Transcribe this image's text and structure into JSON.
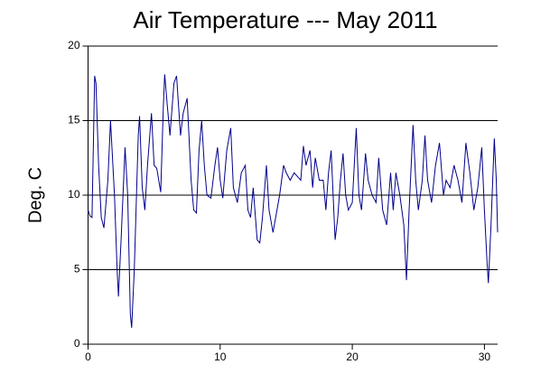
{
  "chart_data": {
    "type": "line",
    "title": "Air Temperature --- May 2011",
    "y_label": "Deg. C",
    "xlim": [
      0,
      31
    ],
    "ylim": [
      0,
      20
    ],
    "xticks": [
      0,
      10,
      20,
      30
    ],
    "yticks": [
      0,
      5,
      10,
      15,
      20
    ],
    "grid": true,
    "x": [
      0,
      0.15,
      0.3,
      0.5,
      0.6,
      0.8,
      1.0,
      1.2,
      1.5,
      1.7,
      2.0,
      2.2,
      2.3,
      2.5,
      2.8,
      3.0,
      3.2,
      3.3,
      3.5,
      3.8,
      3.9,
      4.1,
      4.3,
      4.5,
      4.8,
      5.0,
      5.2,
      5.5,
      5.7,
      5.8,
      6.0,
      6.2,
      6.5,
      6.7,
      7.0,
      7.2,
      7.5,
      7.8,
      8.0,
      8.2,
      8.4,
      8.6,
      8.8,
      9.0,
      9.3,
      9.6,
      9.8,
      10.0,
      10.2,
      10.5,
      10.8,
      11.0,
      11.3,
      11.6,
      11.9,
      12.1,
      12.3,
      12.5,
      12.8,
      13.0,
      13.2,
      13.5,
      13.7,
      14.0,
      14.2,
      14.5,
      14.8,
      15.0,
      15.3,
      15.6,
      15.9,
      16.1,
      16.3,
      16.5,
      16.8,
      17.0,
      17.2,
      17.5,
      17.8,
      18.0,
      18.2,
      18.4,
      18.7,
      18.9,
      19.1,
      19.3,
      19.5,
      19.7,
      20.0,
      20.3,
      20.5,
      20.7,
      21.0,
      21.2,
      21.5,
      21.8,
      22.0,
      22.3,
      22.6,
      22.9,
      23.1,
      23.3,
      23.6,
      23.9,
      24.1,
      24.3,
      24.6,
      24.8,
      25.0,
      25.3,
      25.5,
      25.7,
      26.0,
      26.3,
      26.6,
      26.9,
      27.1,
      27.4,
      27.7,
      28.0,
      28.3,
      28.6,
      28.9,
      29.2,
      29.5,
      29.8,
      30.0,
      30.2,
      30.3,
      30.5,
      30.75,
      30.9,
      31.0
    ],
    "series": [
      {
        "name": "Air Temperature",
        "color": "#00008b",
        "values": [
          9,
          8.6,
          8.5,
          18,
          17.5,
          12,
          8.5,
          7.8,
          11,
          15,
          10,
          5,
          3.2,
          7,
          13.2,
          10,
          2,
          1.1,
          5,
          14,
          15.3,
          10.5,
          9,
          12,
          15.5,
          12,
          11.8,
          10.2,
          16,
          18.1,
          16,
          14,
          17.5,
          18,
          14,
          15.5,
          16.5,
          11,
          9,
          8.8,
          13,
          15,
          12,
          10,
          9.8,
          12,
          13.2,
          11,
          9.8,
          13,
          14.5,
          10.5,
          9.5,
          11.5,
          12,
          9,
          8.5,
          10.5,
          7,
          6.8,
          8.5,
          12,
          9,
          7.5,
          8.5,
          10,
          12,
          11.5,
          11,
          11.5,
          11.2,
          11,
          13.3,
          12,
          13,
          10.5,
          12.5,
          11,
          11,
          9,
          11.5,
          13,
          7,
          8.5,
          11,
          12.8,
          10,
          9,
          9.5,
          14.5,
          10,
          9,
          12.8,
          11,
          10,
          9.5,
          12.5,
          9,
          8,
          11.5,
          9,
          11.5,
          10,
          8,
          4.3,
          9,
          14.7,
          11,
          9,
          11,
          14,
          11,
          9.5,
          12,
          13.5,
          10,
          11,
          10.5,
          12,
          11,
          9.5,
          13.5,
          11.5,
          9,
          10.5,
          13.2,
          9,
          5.5,
          4.1,
          8,
          13.8,
          11,
          7.5
        ]
      }
    ]
  }
}
